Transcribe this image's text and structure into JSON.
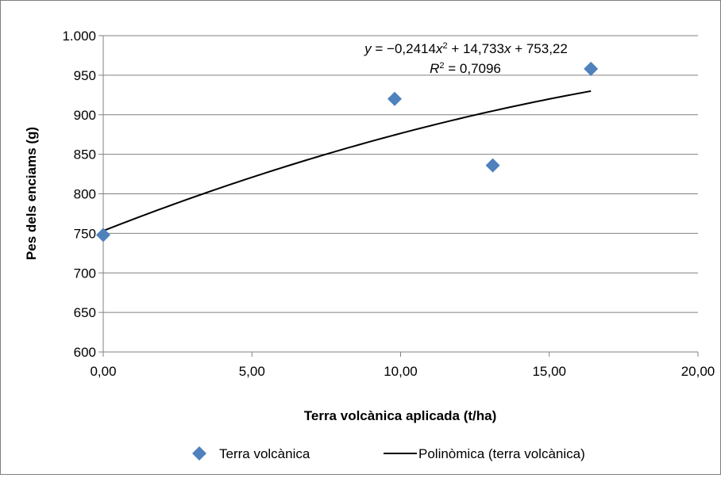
{
  "chart_data": {
    "type": "scatter",
    "title": "",
    "xlabel": "Terra volcànica aplicada (t/ha)",
    "ylabel": "Pes dels enciams (g)",
    "xlim": [
      0,
      20
    ],
    "ylim": [
      600,
      1000
    ],
    "x_ticks": [
      "0,00",
      "5,00",
      "10,00",
      "15,00",
      "20,00"
    ],
    "y_ticks": [
      "600",
      "650",
      "700",
      "750",
      "800",
      "850",
      "900",
      "950",
      "1.000"
    ],
    "grid": "horizontal",
    "legend_position": "bottom",
    "colors": {
      "marker": "#4f81bd",
      "trendline": "#000000",
      "grid": "#808080"
    },
    "series": [
      {
        "name": "Terra volcànica",
        "points": [
          {
            "x": 0.0,
            "y": 748
          },
          {
            "x": 9.8,
            "y": 920
          },
          {
            "x": 13.1,
            "y": 836
          },
          {
            "x": 16.4,
            "y": 958
          }
        ]
      }
    ],
    "trendline": {
      "name": "Polinòmica (terra volcànica)",
      "coefficients": {
        "a": -0.2414,
        "b": 14.733,
        "c": 753.22
      },
      "x_range": [
        0,
        16.4
      ],
      "equation_parts": {
        "y": "y",
        "rhs_a": " = −0,2414",
        "x1": "x",
        "sup2": "2",
        "rhs_b": " + 14,733",
        "x2": "x",
        "rhs_c": " + 753,22",
        "r": "R",
        "r_sup": "2",
        "r_rhs": " = 0,7096"
      }
    }
  }
}
